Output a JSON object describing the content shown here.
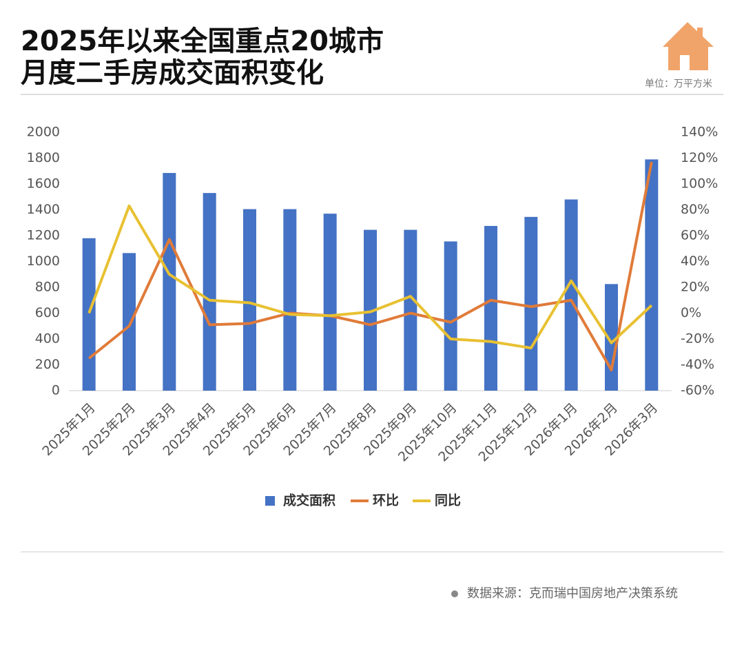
{
  "chart_data": {
    "type": "bar",
    "title": "2025年以来全国重点20城市",
    "subtitle": "月度二手房成交面积变化",
    "unit": "单位：万平方米",
    "source": "数据来源：克而瑞中国房地产决策系统",
    "categories": [
      "2025年1月",
      "2025年2月",
      "2025年3月",
      "2025年4月",
      "2025年5月",
      "2025年6月",
      "2025年7月",
      "2025年8月",
      "2025年9月",
      "2025年10月",
      "2025年11月",
      "2025年12月",
      "2026年1月",
      "2026年2月",
      "2026年3月"
    ],
    "series": [
      {
        "name": "成交面积",
        "type": "bar",
        "axis": "y",
        "color": "#4472c4",
        "values": [
          1180,
          1065,
          1685,
          1530,
          1405,
          1405,
          1370,
          1245,
          1245,
          1155,
          1275,
          1345,
          1480,
          825,
          1790
        ]
      },
      {
        "name": "环比",
        "type": "line",
        "axis": "y2",
        "color": "#e07b39",
        "values": [
          -35,
          -10,
          57,
          -9,
          -8,
          0,
          -2,
          -9,
          0,
          -7,
          10,
          5,
          10,
          -44,
          117
        ]
      },
      {
        "name": "同比",
        "type": "line",
        "axis": "y2",
        "color": "#e8c132",
        "values": [
          0,
          83,
          30,
          10,
          8,
          -1,
          -2,
          1,
          13,
          -20,
          -22,
          -27,
          25,
          -23,
          6
        ]
      }
    ],
    "ylim": [
      0,
      2000
    ],
    "yticks": [
      0,
      200,
      400,
      600,
      800,
      1000,
      1200,
      1400,
      1600,
      1800,
      2000
    ],
    "y2lim": [
      -60,
      140
    ],
    "y2ticks": [
      {
        "value": -60,
        "label": "-60%"
      },
      {
        "value": -40,
        "label": "-40%"
      },
      {
        "value": -20,
        "label": "-20%"
      },
      {
        "value": 0,
        "label": "0%"
      },
      {
        "value": 20,
        "label": "20%"
      },
      {
        "value": 40,
        "label": "40%"
      },
      {
        "value": 60,
        "label": "60%"
      },
      {
        "value": 80,
        "label": "80%"
      },
      {
        "value": 100,
        "label": "100%"
      },
      {
        "value": 120,
        "label": "120%"
      },
      {
        "value": 140,
        "label": "140%"
      }
    ],
    "legend": "bottom"
  }
}
